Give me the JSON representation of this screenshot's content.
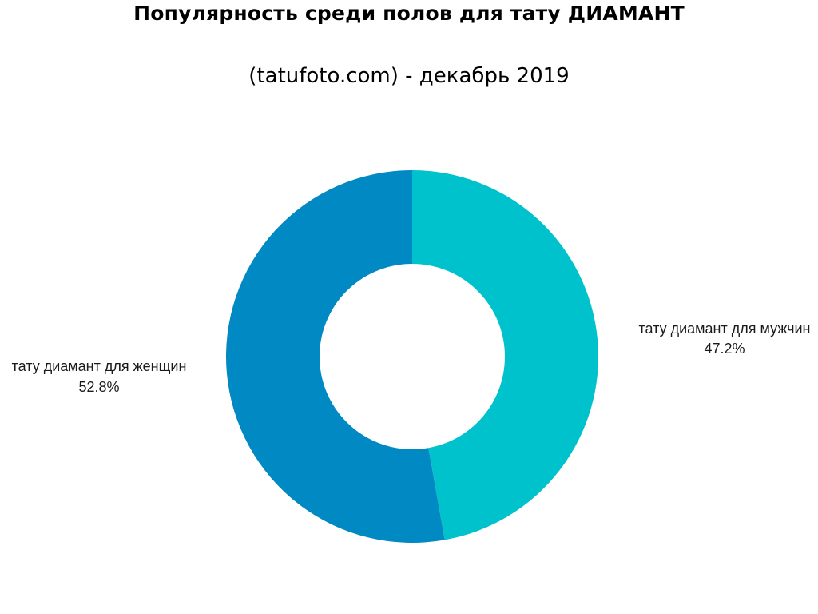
{
  "chart_data": {
    "type": "pie",
    "title": "Популярность среди полов для тату ДИАМАНТ",
    "subtitle": "(tatufoto.com) - декабрь 2019",
    "slices": [
      {
        "label": "тату диамант для мужчин",
        "value": 47.2,
        "percent_text": "47.2%",
        "color": "#00c2cc"
      },
      {
        "label": "тату диамант для женщин",
        "value": 52.8,
        "percent_text": "52.8%",
        "color": "#0089c2"
      }
    ],
    "donut": true,
    "direction": "clockwise",
    "start": "top"
  }
}
